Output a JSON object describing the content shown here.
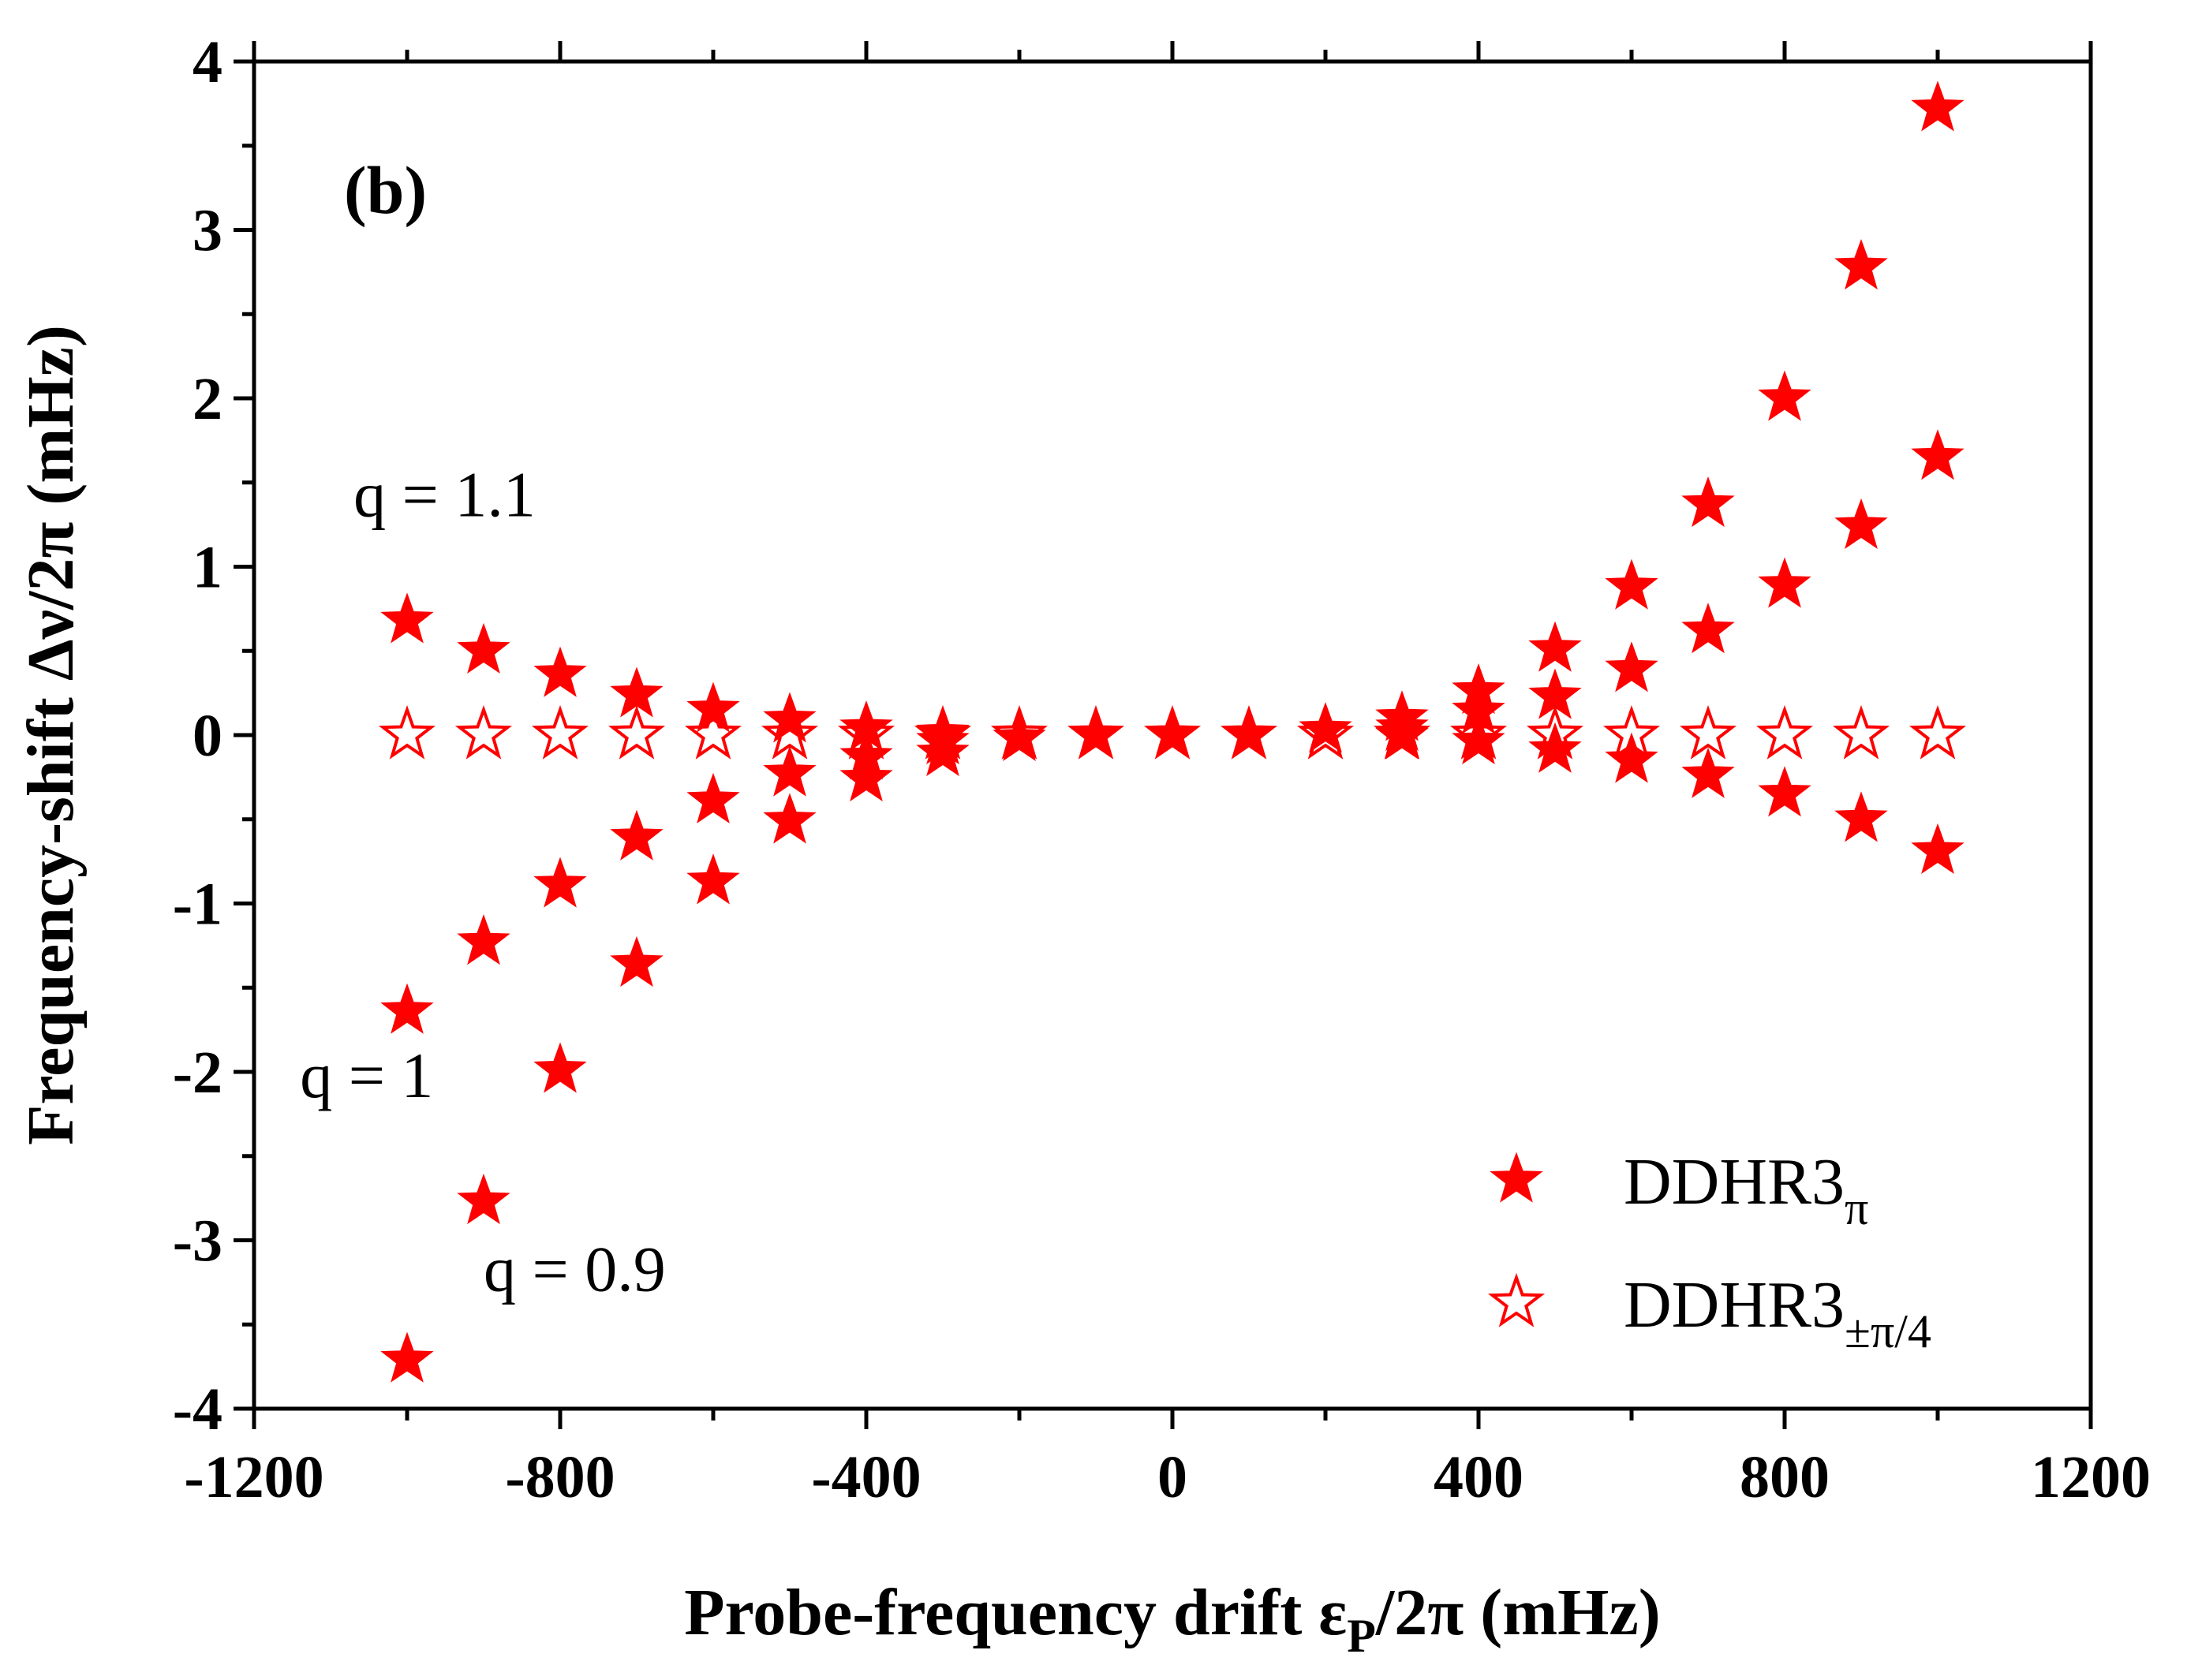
{
  "chart_data": {
    "type": "scatter",
    "panel_label": "(b)",
    "xlabel": {
      "main": "Probe-frequency drift ε",
      "sub": "P",
      "rest": "/2π (mHz)"
    },
    "ylabel": "Frequency-shift Δν/2π (mHz)",
    "xlim": [
      -1200,
      1200
    ],
    "ylim": [
      -4,
      4
    ],
    "x_ticks": [
      -1200,
      -800,
      -400,
      0,
      400,
      800,
      1200
    ],
    "x_tick_labels": [
      "-1200",
      "-800",
      "-400",
      "0",
      "400",
      "800",
      "1200"
    ],
    "y_ticks": [
      -4,
      -3,
      -2,
      -1,
      0,
      1,
      2,
      3,
      4
    ],
    "y_tick_labels": [
      "-4",
      "-3",
      "-2",
      "-1",
      "0",
      "1",
      "2",
      "3",
      "4"
    ],
    "grid": false,
    "legend_position": "bottom-right",
    "annotations": [
      {
        "text": "q = 1.1",
        "x": -1070,
        "y": 1.3
      },
      {
        "text": "q = 1",
        "x": -1140,
        "y": -2.15
      },
      {
        "text": "q = 0.9",
        "x": -900,
        "y": -3.3
      }
    ],
    "series": [
      {
        "name": "DDHR3",
        "name_sub": "π",
        "marker": "filled-star",
        "color": "#ff0000",
        "points": [
          [
            -1000,
            0.68
          ],
          [
            -900,
            0.5
          ],
          [
            -800,
            0.36
          ],
          [
            -700,
            0.24
          ],
          [
            -600,
            0.15
          ],
          [
            -500,
            0.09
          ],
          [
            -400,
            0.04
          ],
          [
            -300,
            0.01
          ],
          [
            -1000,
            -1.64
          ],
          [
            -900,
            -1.23
          ],
          [
            -800,
            -0.89
          ],
          [
            -700,
            -0.61
          ],
          [
            -600,
            -0.39
          ],
          [
            -500,
            -0.23
          ],
          [
            -400,
            -0.13
          ],
          [
            -300,
            -0.04
          ],
          [
            -1000,
            -3.71
          ],
          [
            -900,
            -2.77
          ],
          [
            -800,
            -1.99
          ],
          [
            -700,
            -1.36
          ],
          [
            -600,
            -0.87
          ],
          [
            -500,
            -0.51
          ],
          [
            -400,
            -0.26
          ],
          [
            -300,
            -0.11
          ],
          [
            -200,
            -0.02
          ],
          [
            -100,
            0.0
          ],
          [
            0,
            0.0
          ],
          [
            100,
            0.0
          ],
          [
            200,
            0.03
          ],
          [
            300,
            0.1
          ],
          [
            400,
            0.26
          ],
          [
            500,
            0.51
          ],
          [
            600,
            0.88
          ],
          [
            700,
            1.37
          ],
          [
            800,
            2.0
          ],
          [
            900,
            2.78
          ],
          [
            1000,
            3.72
          ],
          [
            300,
            0.04
          ],
          [
            400,
            0.14
          ],
          [
            500,
            0.23
          ],
          [
            600,
            0.39
          ],
          [
            700,
            0.62
          ],
          [
            800,
            0.89
          ],
          [
            900,
            1.24
          ],
          [
            1000,
            1.65
          ],
          [
            300,
            -0.01
          ],
          [
            400,
            -0.04
          ],
          [
            500,
            -0.09
          ],
          [
            600,
            -0.15
          ],
          [
            700,
            -0.24
          ],
          [
            800,
            -0.35
          ],
          [
            900,
            -0.5
          ],
          [
            1000,
            -0.69
          ]
        ]
      },
      {
        "name": "DDHR3",
        "name_sub": "±π/4",
        "marker": "open-star",
        "color": "#ff0000",
        "points": [
          [
            -1000,
            0
          ],
          [
            -900,
            0
          ],
          [
            -800,
            0
          ],
          [
            -700,
            0
          ],
          [
            -600,
            0
          ],
          [
            -500,
            0
          ],
          [
            -400,
            0
          ],
          [
            -300,
            0
          ],
          [
            -200,
            0
          ],
          [
            -100,
            0
          ],
          [
            0,
            0
          ],
          [
            100,
            0
          ],
          [
            200,
            0
          ],
          [
            300,
            0
          ],
          [
            400,
            0
          ],
          [
            500,
            0
          ],
          [
            600,
            0
          ],
          [
            700,
            0
          ],
          [
            800,
            0
          ],
          [
            900,
            0
          ],
          [
            1000,
            0
          ]
        ]
      }
    ]
  }
}
